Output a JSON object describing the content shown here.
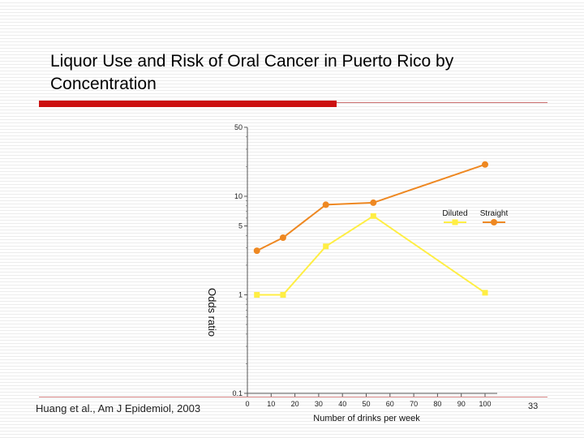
{
  "slide": {
    "title": "Liquor Use and Risk of Oral Cancer in Puerto Rico by Concentration",
    "citation": "Huang et al., Am J Epidemiol, 2003",
    "slide_number": "33"
  },
  "chart_data": {
    "type": "line",
    "title": "",
    "xlabel": "Number of drinks per week",
    "ylabel": "Odds ratio",
    "y_scale": "log",
    "xlim": [
      0,
      105
    ],
    "ylim": [
      0.1,
      50
    ],
    "x_ticks": [
      0,
      10,
      20,
      30,
      40,
      50,
      60,
      70,
      80,
      90,
      100
    ],
    "x_tick_labels": [
      "0",
      "10",
      "20",
      "30",
      "40",
      "50",
      "60",
      "70",
      "80",
      "90",
      "100"
    ],
    "y_ticks": [
      0.1,
      1,
      5,
      10,
      50
    ],
    "y_tick_labels": [
      "0.1",
      "1",
      "5",
      "10",
      "50"
    ],
    "grid": false,
    "legend_position": "top-right",
    "series": [
      {
        "name": "Diluted",
        "color": "#ffee44",
        "marker": "square",
        "x": [
          4,
          15,
          33,
          53,
          100
        ],
        "y": [
          1.0,
          1.0,
          3.1,
          6.3,
          1.05
        ]
      },
      {
        "name": "Straight",
        "color": "#ee8822",
        "marker": "circle",
        "x": [
          4,
          15,
          33,
          53,
          100
        ],
        "y": [
          2.8,
          3.8,
          8.2,
          8.6,
          21
        ]
      }
    ]
  }
}
